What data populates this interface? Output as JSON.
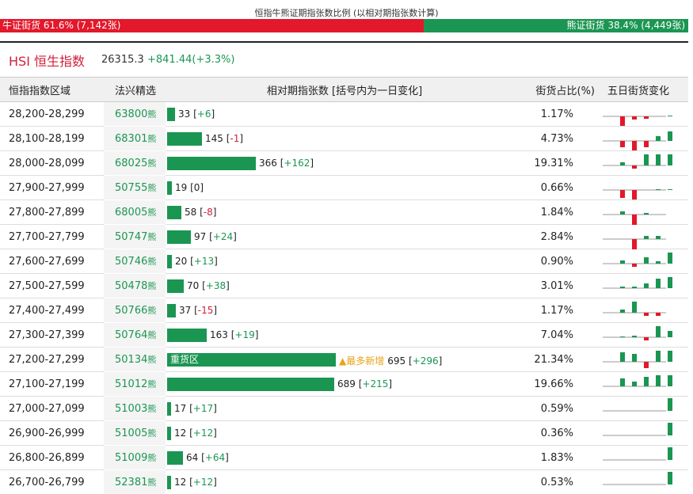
{
  "ratio": {
    "title": "恒指牛熊证期指张数比例 (以相对期指张数计算)",
    "bull_label": "牛证街货 61.6% (7,142张)",
    "bear_label": "熊证街货 38.4% (4,449张)",
    "bull_fraction": 0.616,
    "bull_color": "#e3182b",
    "bear_color": "#1b9652"
  },
  "index": {
    "name": "HSI 恒生指数",
    "value": "26315.3",
    "change": "+841.44(+3.3%)"
  },
  "table": {
    "headers": [
      "恒指指数区域",
      "法兴精选",
      "相对期指张数 [括号内为一日变化]",
      "街货占比(%)",
      "五日街货变化"
    ],
    "code_suffix": "熊",
    "max_count": 695,
    "rows": [
      {
        "range": "28,200-28,299",
        "code": "63800",
        "count": 33,
        "change": "+6",
        "pct": "1.17%",
        "spark": [
          0.0,
          0.0,
          0.0,
          0.0,
          0.0,
          0.0
        ]
      },
      {
        "range": "28,100-28,199",
        "code": "68301",
        "count": 145,
        "change": "-1",
        "pct": "4.73%",
        "spark": [
          0.0,
          0.0,
          0.0,
          0.0,
          0.0,
          0.0
        ]
      },
      {
        "range": "28,000-28,099",
        "code": "68025",
        "count": 366,
        "change": "+162",
        "pct": "19.31%",
        "spark": [
          0,
          0,
          0,
          0,
          0,
          0
        ]
      },
      {
        "range": "27,900-27,999",
        "code": "50755",
        "count": 19,
        "change": "0",
        "pct": "0.66%",
        "spark": [
          0,
          0,
          0,
          0,
          0,
          0
        ]
      },
      {
        "range": "27,800-27,899",
        "code": "68005",
        "count": 58,
        "change": "-8",
        "pct": "1.84%",
        "spark": [
          0,
          0,
          0,
          0,
          0,
          0
        ]
      },
      {
        "range": "27,700-27,799",
        "code": "50747",
        "count": 97,
        "change": "+24",
        "pct": "2.84%",
        "spark": [
          0,
          0,
          0,
          0,
          0,
          0
        ]
      },
      {
        "range": "27,600-27,699",
        "code": "50746",
        "count": 20,
        "change": "+13",
        "pct": "0.90%",
        "spark": [
          0,
          0,
          0,
          0,
          0,
          0
        ]
      },
      {
        "range": "27,500-27,599",
        "code": "50478",
        "count": 70,
        "change": "+38",
        "pct": "3.01%",
        "spark": [
          0,
          0,
          0,
          0,
          0,
          0
        ]
      },
      {
        "range": "27,400-27,499",
        "code": "50766",
        "count": 37,
        "change": "-15",
        "pct": "1.17%",
        "spark": [
          0,
          0,
          0,
          0,
          0,
          0
        ]
      },
      {
        "range": "27,300-27,399",
        "code": "50764",
        "count": 163,
        "change": "+19",
        "pct": "7.04%",
        "spark": [
          0,
          0,
          0,
          0,
          0,
          0
        ]
      },
      {
        "range": "27,200-27,299",
        "code": "50134",
        "count": 695,
        "change": "+296",
        "pct": "21.34%",
        "bar_label": "重货区",
        "note": "▲最多新增",
        "spark": [
          0,
          0,
          0,
          0,
          0,
          0
        ]
      },
      {
        "range": "27,100-27,199",
        "code": "51012",
        "count": 689,
        "change": "+215",
        "pct": "19.66%",
        "spark": [
          0,
          0,
          0,
          0,
          0,
          0
        ]
      },
      {
        "range": "27,000-27,099",
        "code": "51003",
        "count": 17,
        "change": "+17",
        "pct": "0.59%",
        "spark": [
          0,
          0,
          0,
          0,
          0,
          0
        ]
      },
      {
        "range": "26,900-26,999",
        "code": "51005",
        "count": 12,
        "change": "+12",
        "pct": "0.36%",
        "spark": [
          0,
          0,
          0,
          0,
          0,
          0
        ]
      },
      {
        "range": "26,800-26,899",
        "code": "51009",
        "count": 64,
        "change": "+64",
        "pct": "1.83%",
        "spark": [
          0,
          0,
          0,
          0,
          0,
          0
        ]
      },
      {
        "range": "26,700-26,799",
        "code": "52381",
        "count": 12,
        "change": "+12",
        "pct": "0.53%",
        "spark": [
          0,
          0,
          0,
          0,
          0,
          0
        ]
      }
    ],
    "sparks": [
      [
        -12,
        -4,
        -3,
        0,
        1,
        1
      ],
      [
        -8,
        -12,
        -8,
        6,
        12,
        0
      ],
      [
        4,
        -4,
        14,
        14,
        14,
        0
      ],
      [
        -10,
        -12,
        0,
        1,
        1,
        0
      ],
      [
        4,
        -14,
        2,
        0,
        0,
        0
      ],
      [
        0,
        -15,
        4,
        4,
        0,
        0
      ],
      [
        4,
        -4,
        8,
        3,
        14,
        0
      ],
      [
        2,
        2,
        6,
        12,
        14,
        0
      ],
      [
        4,
        14,
        -4,
        -4,
        0,
        0
      ],
      [
        1,
        2,
        -4,
        14,
        8,
        0
      ],
      [
        12,
        10,
        -8,
        14,
        14,
        0
      ],
      [
        10,
        6,
        12,
        14,
        14,
        0
      ],
      [
        0,
        0,
        0,
        0,
        16,
        0
      ],
      [
        0,
        0,
        0,
        0,
        16,
        0
      ],
      [
        0,
        0,
        0,
        0,
        16,
        0
      ],
      [
        0,
        0,
        0,
        0,
        16,
        0
      ]
    ]
  }
}
